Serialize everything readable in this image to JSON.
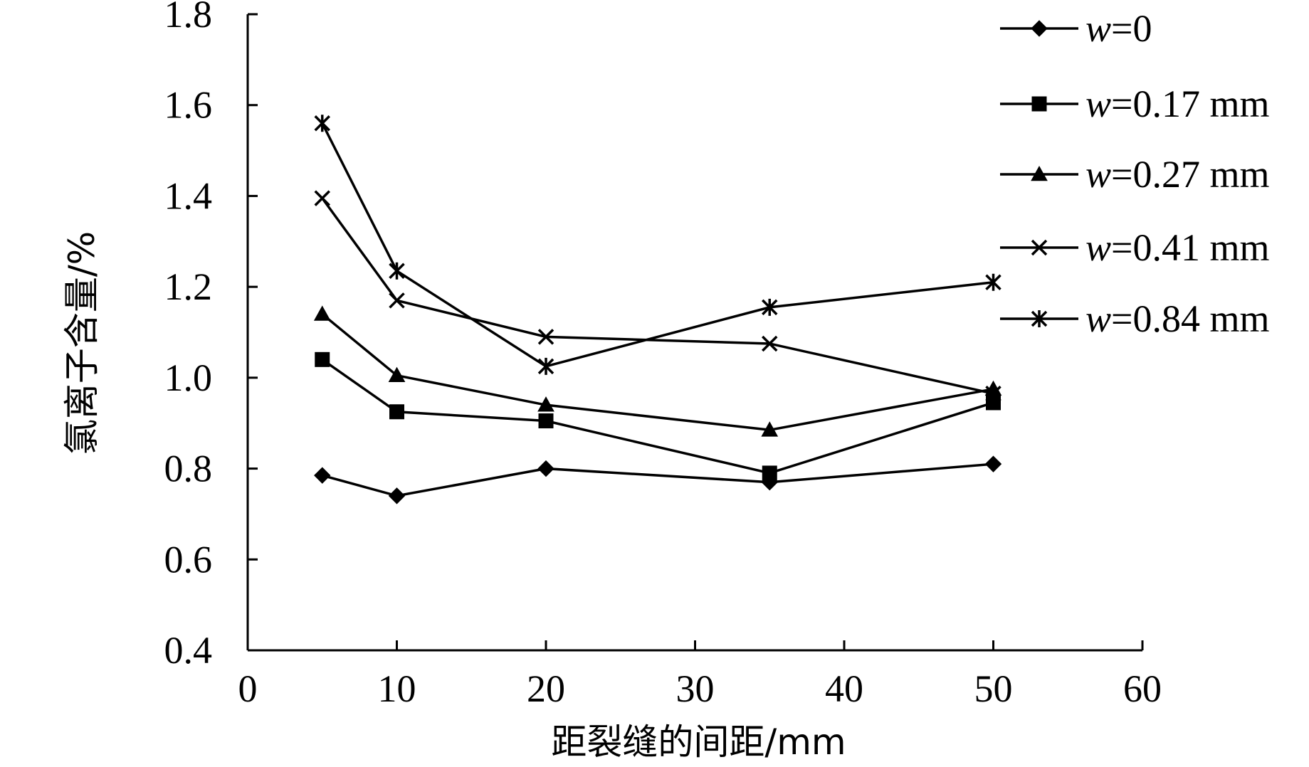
{
  "chart_data": {
    "type": "line",
    "xlabel": "距裂缝的间距/mm",
    "ylabel": "氯离子含量/%",
    "xlim": [
      0,
      60
    ],
    "ylim": [
      0.4,
      1.8
    ],
    "xticks": [
      0,
      10,
      20,
      30,
      40,
      50,
      60
    ],
    "yticks": [
      0.4,
      0.6,
      0.8,
      1.0,
      1.2,
      1.4,
      1.6,
      1.8
    ],
    "xtick_labels": [
      "0",
      "10",
      "20",
      "30",
      "40",
      "50",
      "60"
    ],
    "ytick_labels": [
      "0.4",
      "0.6",
      "0.8",
      "1.0",
      "1.2",
      "1.4",
      "1.6",
      "1.8"
    ],
    "grid": false,
    "legend_position": "top-right",
    "x": [
      5,
      10,
      20,
      35,
      50
    ],
    "series": [
      {
        "name": "w=0",
        "name_var": "w",
        "name_rest": "=0",
        "marker": "diamond",
        "values": [
          0.785,
          0.74,
          0.8,
          0.77,
          0.81
        ]
      },
      {
        "name": "w=0.17 mm",
        "name_var": "w",
        "name_rest": "=0.17 mm",
        "marker": "square",
        "values": [
          1.04,
          0.925,
          0.905,
          0.79,
          0.945
        ]
      },
      {
        "name": "w=0.27 mm",
        "name_var": "w",
        "name_rest": "=0.27 mm",
        "marker": "triangle",
        "values": [
          1.14,
          1.005,
          0.94,
          0.885,
          0.975
        ]
      },
      {
        "name": "w=0.41 mm",
        "name_var": "w",
        "name_rest": "=0.41 mm",
        "marker": "x",
        "values": [
          1.395,
          1.17,
          1.09,
          1.075,
          0.965
        ]
      },
      {
        "name": "w=0.84 mm",
        "name_var": "w",
        "name_rest": "=0.84 mm",
        "marker": "star",
        "values": [
          1.56,
          1.235,
          1.025,
          1.155,
          1.21
        ]
      }
    ]
  }
}
